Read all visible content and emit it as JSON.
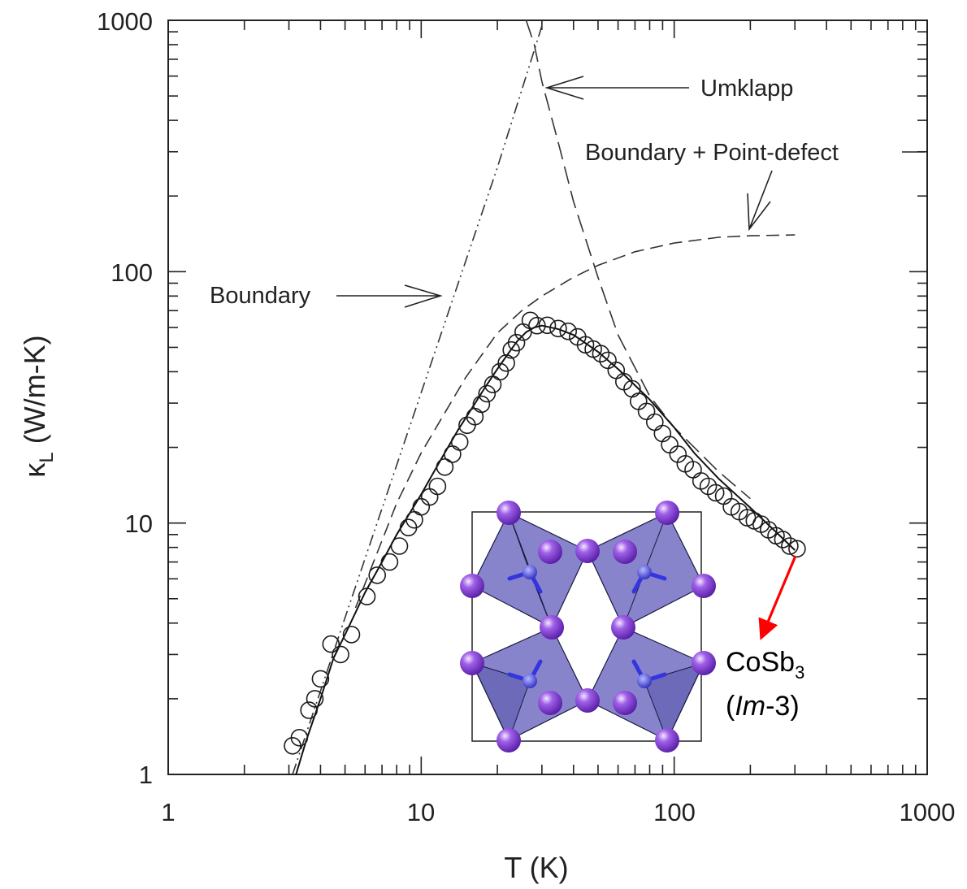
{
  "chart_data": {
    "type": "scatter",
    "xscale": "log",
    "yscale": "log",
    "xlim": [
      1,
      1000
    ],
    "ylim": [
      1,
      1000
    ],
    "xlabel": "T (K)",
    "ylabel_symbol": "κ",
    "ylabel_sub": "L",
    "ylabel_unit": "(W/m-K)",
    "x_ticks": [
      "1",
      "10",
      "100",
      "1000"
    ],
    "y_ticks": [
      "1",
      "10",
      "100",
      "1000"
    ],
    "grid": false,
    "measured": {
      "x": [
        3.1,
        3.3,
        3.6,
        3.8,
        4.0,
        4.4,
        4.8,
        5.3,
        6.1,
        6.7,
        7.5,
        8.2,
        8.9,
        9.4,
        10.0,
        10.8,
        11.6,
        12.4,
        13.3,
        14.2,
        15.2,
        16.3,
        17.3,
        18.2,
        19.2,
        20.5,
        21.7,
        22.7,
        23.8,
        25.3,
        27.0,
        28.7,
        31.5,
        34.8,
        38.1,
        41.5,
        44.6,
        47.9,
        51.3,
        54.7,
        59.0,
        63.3,
        68.2,
        72.3,
        77.7,
        83.8,
        89.9,
        96.0,
        103.5,
        110.6,
        118.8,
        127.7,
        136.4,
        145.9,
        156.9,
        168.4,
        180.8,
        194.5,
        207.4,
        220.9,
        236.0,
        252.7,
        268.8,
        286.4,
        306.0
      ],
      "y": [
        1.3,
        1.4,
        1.8,
        2.0,
        2.4,
        3.3,
        3.0,
        3.6,
        5.1,
        6.2,
        7.0,
        8.1,
        9.6,
        10.3,
        11.6,
        12.7,
        14.0,
        16.7,
        18.8,
        21.0,
        24.5,
        26.5,
        29.7,
        32.7,
        35.6,
        40.0,
        43.3,
        48.8,
        52.2,
        57.5,
        64.0,
        61.0,
        61.2,
        59.4,
        57.9,
        55.0,
        51.2,
        49.2,
        47.2,
        44.4,
        40.5,
        36.5,
        34.2,
        30.5,
        27.8,
        25.2,
        22.7,
        20.5,
        18.8,
        17.2,
        16.3,
        14.7,
        14.0,
        13.2,
        12.8,
        11.6,
        11.1,
        10.5,
        10.2,
        9.9,
        9.4,
        8.9,
        8.6,
        8.1,
        7.9
      ]
    },
    "fit_curve": {
      "x": [
        3.2,
        3.5,
        4.0,
        4.5,
        5.0,
        6.0,
        7.0,
        8.0,
        10.0,
        12.0,
        14.0,
        16.0,
        18.0,
        20.0,
        22.0,
        24.0,
        26.0,
        28.0,
        30.0,
        35.0,
        40.0,
        50.0,
        60.0,
        80.0,
        100.0,
        120.0,
        150.0,
        200.0,
        250.0,
        300.0
      ],
      "y": [
        1.0,
        1.35,
        2.0,
        2.9,
        3.6,
        5.3,
        7.0,
        9.0,
        13.0,
        18.0,
        23.5,
        29.0,
        35.0,
        41.0,
        47.0,
        53.0,
        57.5,
        60.0,
        61.0,
        59.0,
        56.0,
        48.0,
        41.0,
        31.0,
        24.0,
        19.0,
        15.0,
        11.5,
        9.3,
        7.8
      ]
    },
    "boundary_curve": {
      "x": [
        3.1,
        5.0,
        10.0,
        20.0,
        30.0
      ],
      "y": [
        1.0,
        4.2,
        33.0,
        260.0,
        950.0
      ]
    },
    "boundary_point_defect_curve": {
      "x": [
        5.5,
        8.0,
        10.0,
        15.0,
        20.0,
        25.0,
        30.0,
        40.0,
        50.0,
        70.0,
        100.0,
        150.0,
        200.0,
        300.0
      ],
      "y": [
        4.6,
        12.0,
        19.0,
        38.0,
        57.0,
        70.0,
        80.0,
        95.0,
        106.0,
        120.0,
        130.0,
        137.0,
        139.0,
        140.0
      ]
    },
    "umklapp_curve": {
      "x": [
        26.0,
        28.0,
        30.0,
        35.0,
        40.0,
        50.0,
        60.0,
        80.0,
        100.0,
        150.0,
        200.0
      ],
      "y": [
        1000.0,
        800.0,
        570.0,
        320.0,
        190.0,
        95.0,
        56.0,
        32.0,
        24.0,
        16.0,
        12.5
      ]
    },
    "annotations": {
      "umklapp": "Umklapp",
      "boundary_point_defect": "Boundary + Point-defect",
      "boundary": "Boundary"
    },
    "material": {
      "formula_main": "CoSb",
      "formula_sub": "3",
      "space_group_italic": "Im",
      "space_group_rest": "-3",
      "paren_open": "(",
      "paren_close": ")"
    },
    "colors": {
      "axes": "#222222",
      "curves": "#333333",
      "markers": "#1a1a1a",
      "arrow": "#ff0000",
      "crystal_face": "#5a55b8",
      "crystal_atom": "#8a3fd6",
      "crystal_center_atom": "#4a4ae0"
    }
  }
}
